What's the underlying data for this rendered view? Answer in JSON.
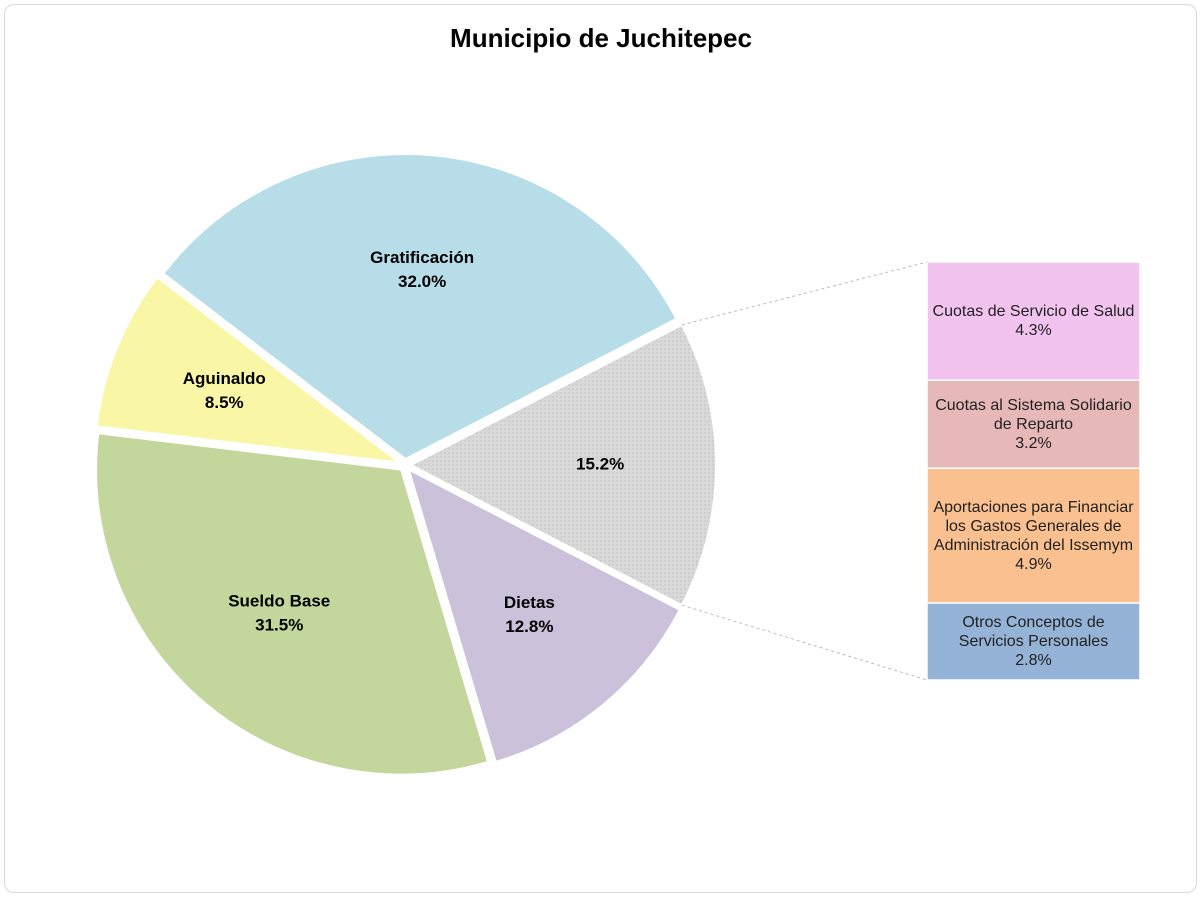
{
  "chart_data": {
    "type": "pie-of-bar",
    "title": "Municipio de Juchitepec",
    "categories": [
      null,
      "Gratificación",
      "Aguinaldo",
      "Sueldo Base",
      "Dietas"
    ],
    "values": [
      15.2,
      32.0,
      8.5,
      31.5,
      12.8
    ],
    "value_labels": [
      "15.2%",
      "32.0%",
      "8.5%",
      "31.5%",
      "12.8%"
    ],
    "colors": [
      "#d9d9d9",
      "#b7dde8",
      "#f9f7a5",
      "#c3d69b",
      "#ccc1da"
    ],
    "breakdown": {
      "categories": [
        "Cuotas de Servicio de Salud",
        "Cuotas al Sistema Solidario de Reparto",
        "Aportaciones para Financiar los Gastos Generales de Administración del Issemym",
        "Otros Conceptos de Servicios Personales"
      ],
      "values": [
        4.3,
        3.2,
        4.9,
        2.8
      ],
      "value_labels": [
        "4.3%",
        "3.2%",
        "4.9%",
        "2.8%"
      ],
      "colors": [
        "#f2c3ee",
        "#e6b9b8",
        "#fac090",
        "#95b3d7"
      ]
    }
  }
}
